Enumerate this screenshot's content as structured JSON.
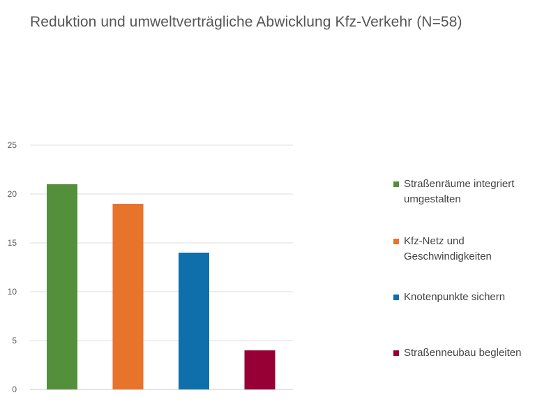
{
  "chart_data": {
    "type": "bar",
    "title": "Reduktion und umweltverträgliche Abwicklung Kfz-Verkehr (N=58)",
    "xlabel": "",
    "ylabel": "",
    "ylim": [
      0,
      25
    ],
    "yticks": [
      "0",
      "5",
      "10",
      "15",
      "20",
      "25"
    ],
    "grid": true,
    "legend_position": "right",
    "categories": [
      "Straßenräume integriert umgestalten",
      "Kfz-Netz und Geschwindigkeiten",
      "Knotenpunkte sichern",
      "Straßenneubau begleiten"
    ],
    "values": [
      21,
      19,
      14,
      4
    ],
    "colors": [
      "#548f3b",
      "#e8732a",
      "#0e6fab",
      "#960034"
    ],
    "legend": [
      {
        "lines": [
          "Straßenräume integriert",
          "umgestalten"
        ],
        "color": "#548f3b"
      },
      {
        "lines": [
          "Kfz-Netz und",
          "Geschwindigkeiten"
        ],
        "color": "#e8732a"
      },
      {
        "lines": [
          "Knotenpunkte sichern"
        ],
        "color": "#0e6fab"
      },
      {
        "lines": [
          "Straßenneubau begleiten"
        ],
        "color": "#960034"
      }
    ]
  }
}
